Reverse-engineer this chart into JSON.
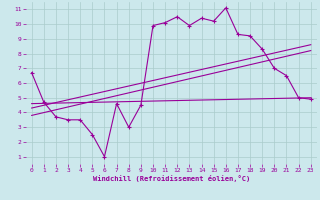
{
  "xlabel": "Windchill (Refroidissement éolien,°C)",
  "background_color": "#cce8ec",
  "line_color": "#990099",
  "grid_color": "#aacccc",
  "xlim": [
    -0.5,
    23.5
  ],
  "ylim": [
    0.5,
    11.5
  ],
  "xticks": [
    0,
    1,
    2,
    3,
    4,
    5,
    6,
    7,
    8,
    9,
    10,
    11,
    12,
    13,
    14,
    15,
    16,
    17,
    18,
    19,
    20,
    21,
    22,
    23
  ],
  "yticks": [
    1,
    2,
    3,
    4,
    5,
    6,
    7,
    8,
    9,
    10,
    11
  ],
  "line1_x": [
    0,
    1,
    2,
    3,
    4,
    5,
    6,
    7,
    8,
    9,
    10,
    11,
    12,
    13,
    14,
    15,
    16,
    17,
    18,
    19,
    20,
    21,
    22,
    23
  ],
  "line1_y": [
    6.7,
    4.7,
    3.7,
    3.5,
    3.5,
    2.5,
    1.0,
    4.6,
    3.0,
    4.5,
    9.9,
    10.1,
    10.5,
    9.9,
    10.4,
    10.2,
    11.1,
    9.3,
    9.2,
    8.3,
    7.0,
    6.5,
    5.0,
    4.9
  ],
  "line2_x": [
    0,
    23
  ],
  "line2_y": [
    4.3,
    8.6
  ],
  "line3_x": [
    0,
    23
  ],
  "line3_y": [
    4.6,
    5.0
  ],
  "line4_x": [
    0,
    23
  ],
  "line4_y": [
    3.8,
    8.2
  ]
}
